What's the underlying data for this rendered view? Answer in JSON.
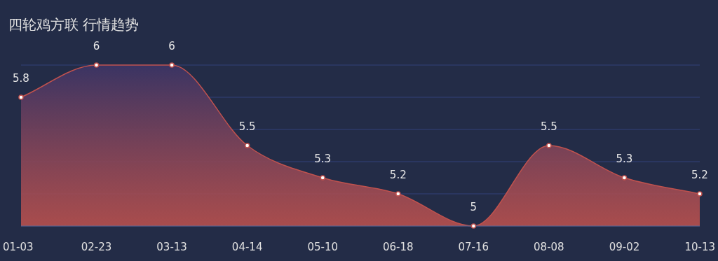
{
  "chart_data": {
    "type": "area",
    "title": "四轮鸡方联 行情趋势",
    "categories": [
      "01-03",
      "02-23",
      "03-13",
      "04-14",
      "05-10",
      "06-18",
      "07-16",
      "08-08",
      "09-02",
      "10-13"
    ],
    "values": [
      5.8,
      6,
      6,
      5.5,
      5.3,
      5.2,
      5,
      5.5,
      5.3,
      5.2
    ],
    "color": "#c0524e",
    "ylim": [
      5,
      6
    ],
    "yticks": [
      {
        "value": 5,
        "label": null
      },
      {
        "value": 5.2,
        "label": null
      },
      {
        "value": 5.4,
        "label": null
      },
      {
        "value": 5.6,
        "label": null
      },
      {
        "value": 5.8,
        "label": null
      },
      {
        "value": 6,
        "label": null
      }
    ],
    "grid": "y",
    "tick_labels": "x",
    "data_labels": true,
    "marker": "circle"
  }
}
